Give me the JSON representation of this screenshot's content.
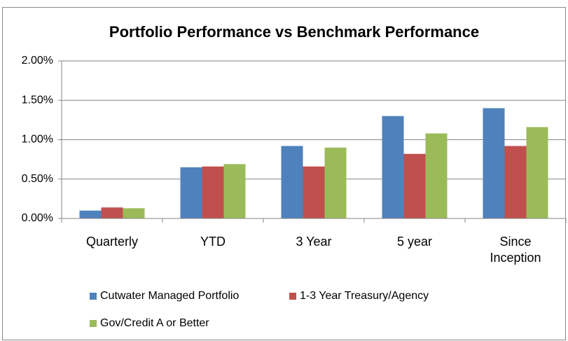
{
  "chart_data": {
    "type": "bar",
    "title": "Portfolio Performance vs Benchmark Performance",
    "categories": [
      "Quarterly",
      "YTD",
      "3 Year",
      "5 year",
      "Since Inception"
    ],
    "series": [
      {
        "name": "Cutwater Managed Portfolio",
        "color": "#4f81bd",
        "values": [
          0.1,
          0.65,
          0.92,
          1.3,
          1.4
        ]
      },
      {
        "name": "1-3 Year Treasury/Agency",
        "color": "#c0504d",
        "values": [
          0.14,
          0.66,
          0.66,
          0.82,
          0.92
        ]
      },
      {
        "name": "Gov/Credit A or Better",
        "color": "#9bbb59",
        "values": [
          0.13,
          0.69,
          0.9,
          1.08,
          1.16
        ]
      }
    ],
    "ylim": [
      0,
      2
    ],
    "yticks": [
      {
        "value": 0,
        "label": "0.00%"
      },
      {
        "value": 0.5,
        "label": "0.50%"
      },
      {
        "value": 1,
        "label": "1.00%"
      },
      {
        "value": 1.5,
        "label": "1.50%"
      },
      {
        "value": 2,
        "label": "2.00%"
      }
    ],
    "grid": true,
    "legend": "bottom"
  }
}
